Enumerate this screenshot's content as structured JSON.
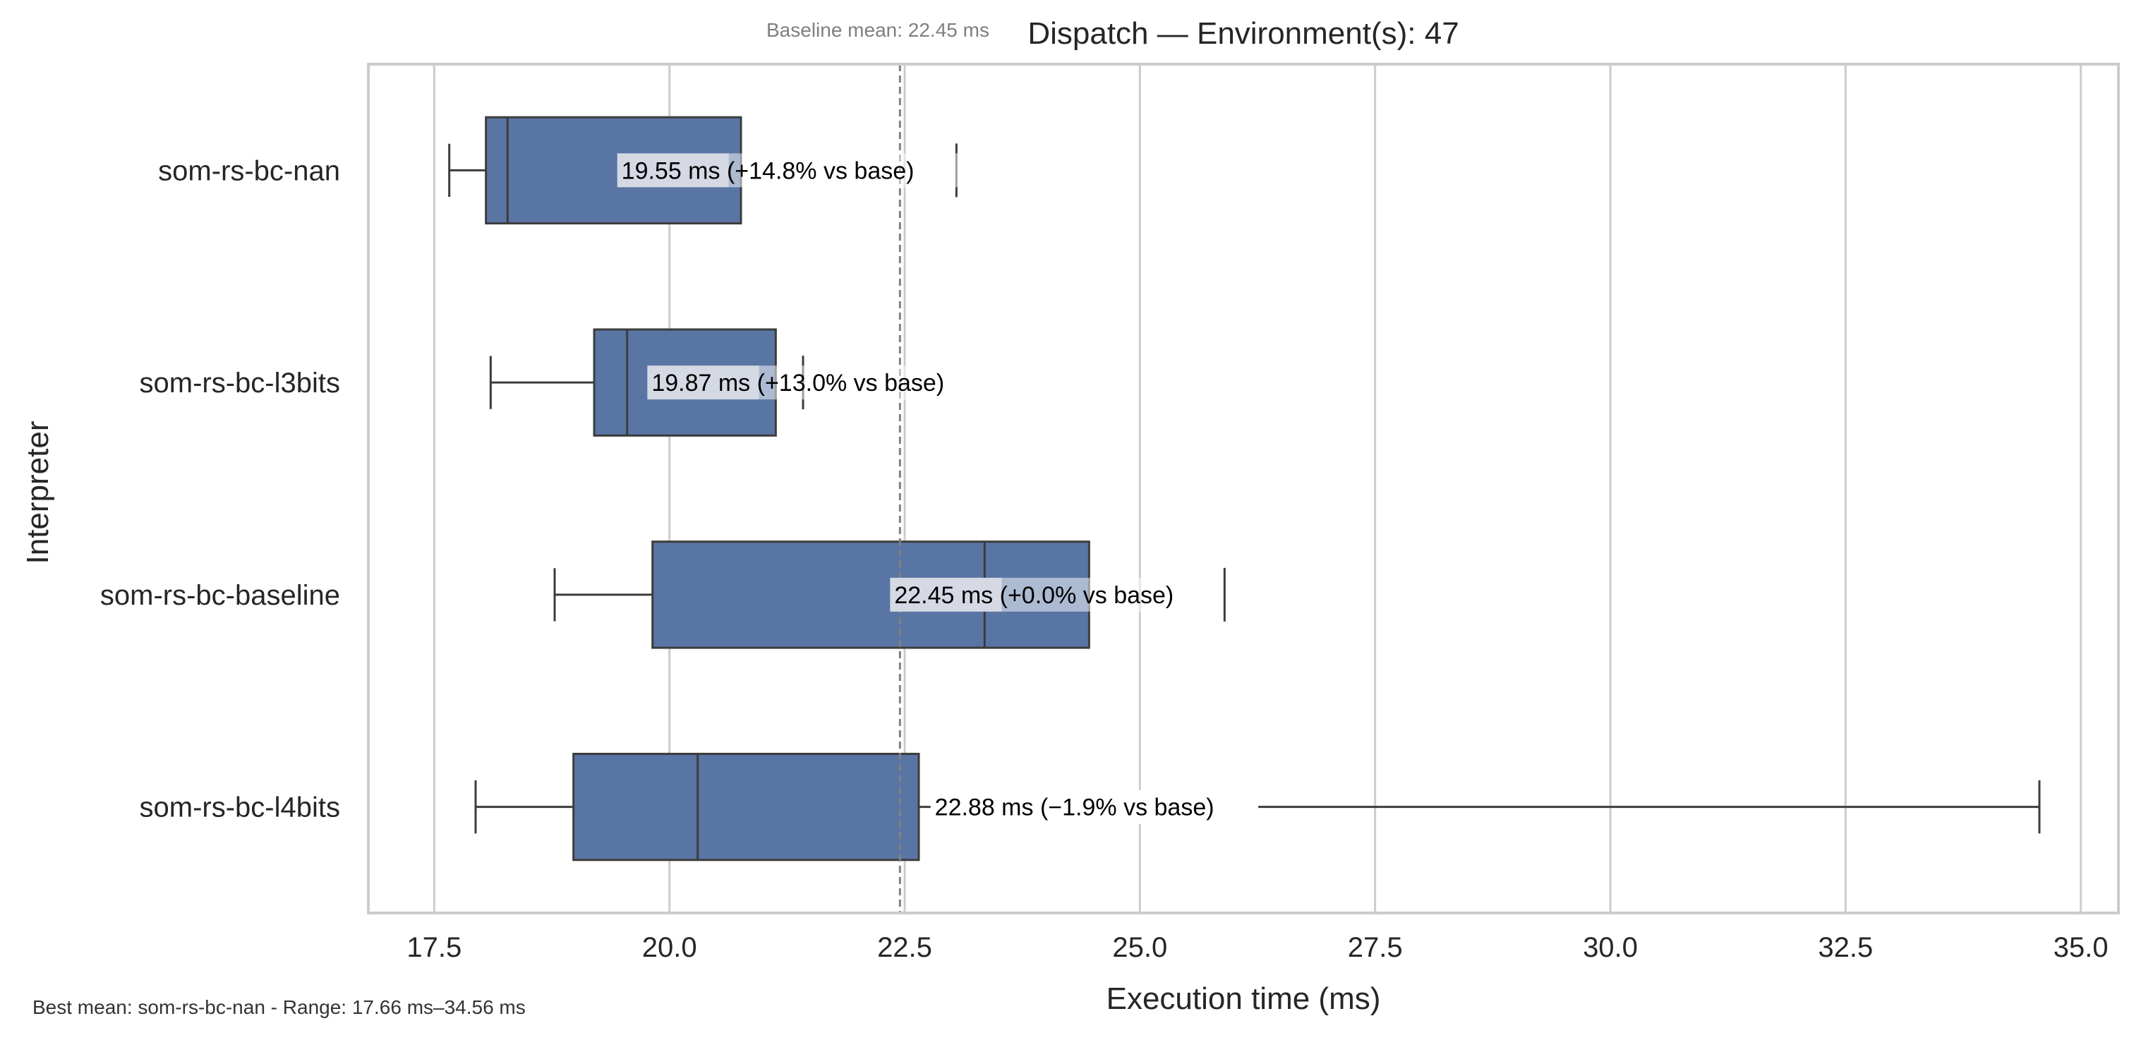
{
  "chart_data": {
    "type": "box",
    "orientation": "horizontal",
    "title": "Dispatch — Environment(s): 47",
    "xlabel": "Execution time (ms)",
    "ylabel": "Interpreter",
    "xlim": [
      16.8,
      35.4
    ],
    "xticks": [
      17.5,
      20.0,
      22.5,
      25.0,
      27.5,
      30.0,
      32.5,
      35.0
    ],
    "xtick_labels": [
      "17.5",
      "20.0",
      "22.5",
      "25.0",
      "27.5",
      "30.0",
      "32.5",
      "35.0"
    ],
    "grid": "x",
    "categories": [
      "som-rs-bc-nan",
      "som-rs-bc-l3bits",
      "som-rs-bc-baseline",
      "som-rs-bc-l4bits"
    ],
    "boxes": [
      {
        "name": "som-rs-bc-nan",
        "whisker_low": 17.66,
        "q1": 18.05,
        "median": 18.28,
        "q3": 20.76,
        "whisker_high": 20.76,
        "mean": 19.55,
        "mean_tick": 23.05,
        "label": "19.55 ms  (+14.8% vs base)"
      },
      {
        "name": "som-rs-bc-l3bits",
        "whisker_low": 18.1,
        "q1": 19.2,
        "median": 19.55,
        "q3": 21.13,
        "whisker_high": 21.13,
        "mean": 19.87,
        "mean_tick": 21.42,
        "label": "19.87 ms  (+13.0% vs base)"
      },
      {
        "name": "som-rs-bc-baseline",
        "whisker_low": 18.78,
        "q1": 19.82,
        "median": 23.35,
        "q3": 24.46,
        "whisker_high": 24.46,
        "mean": 22.45,
        "mean_tick": 25.9,
        "label": "22.45 ms  (+0.0% vs base)"
      },
      {
        "name": "som-rs-bc-l4bits",
        "whisker_low": 17.94,
        "q1": 18.98,
        "median": 20.3,
        "q3": 22.65,
        "whisker_high": 34.56,
        "mean": 22.88,
        "mean_tick": null,
        "label": "22.88 ms  (−1.9% vs base)"
      }
    ],
    "baseline_mean": 22.45,
    "baseline_label": "Baseline mean: 22.45 ms",
    "footer": "Best mean: som-rs-bc-nan - Range: 17.66 ms–34.56 ms",
    "colors": {
      "box_fill": "#5975a4",
      "box_stroke": "#3c3c3c",
      "grid": "#cccccc",
      "frame": "#cccccc",
      "baseline_line": "#808080",
      "label_bg": "#d5d9e4"
    }
  }
}
